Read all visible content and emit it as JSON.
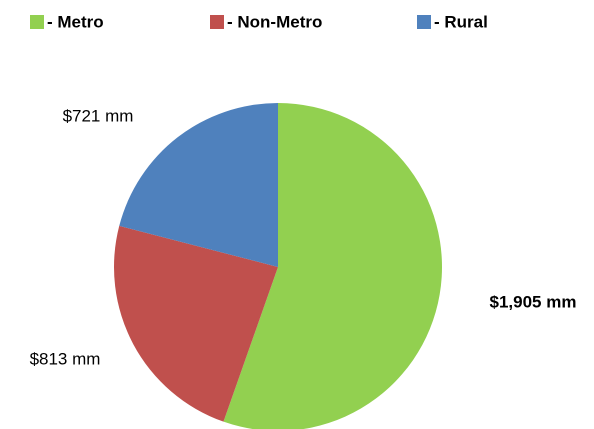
{
  "chart_data": {
    "type": "pie",
    "categories": [
      "- Metro",
      "- Non-Metro",
      "- Rural"
    ],
    "values": [
      1905,
      813,
      721
    ],
    "value_labels": [
      "$1,905 mm",
      "$813 mm",
      "$721 mm"
    ],
    "colors": [
      "#92d050",
      "#c0504d",
      "#4f81bd"
    ],
    "legend": "top"
  }
}
